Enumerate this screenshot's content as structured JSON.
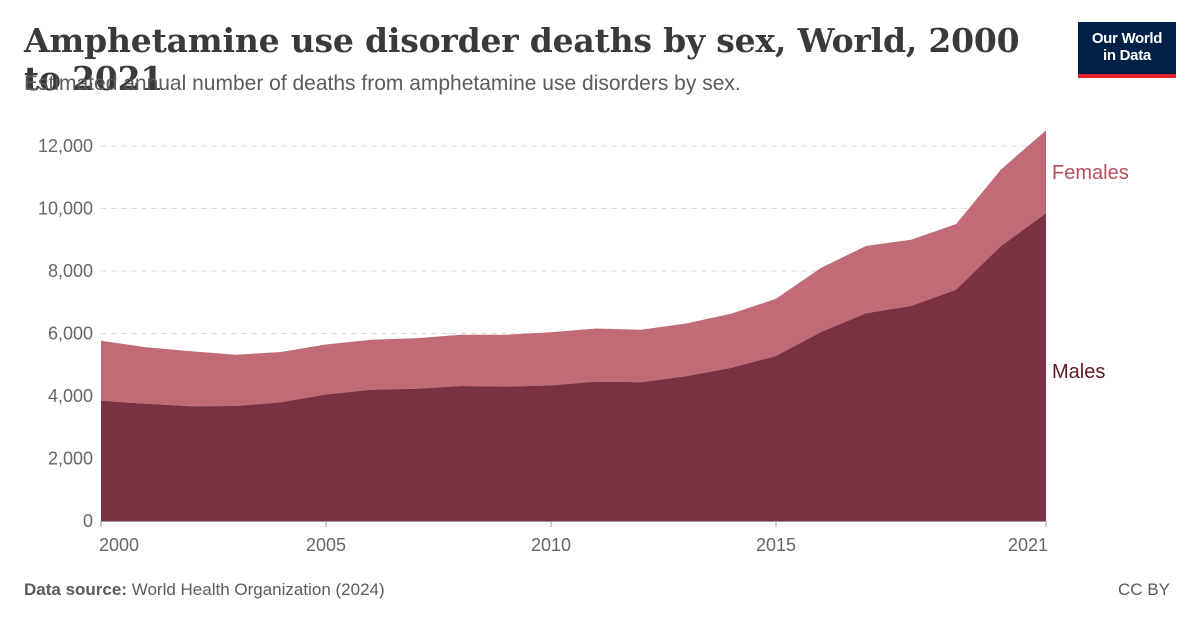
{
  "header": {
    "title": "Amphetamine use disorder deaths by sex, World, 2000 to 2021",
    "subtitle": "Estimated annual number of deaths from amphetamine use disorders by sex."
  },
  "logo": {
    "line1": "Our World",
    "line2": "in Data"
  },
  "footer": {
    "source_label": "Data source:",
    "source_text": "World Health Organization (2024)",
    "license": "CC BY"
  },
  "colors": {
    "males": "#7a3242",
    "females": "#c06b75",
    "females_label": "#b54f5f",
    "males_label": "#5e1a28",
    "grid": "#dddddd",
    "axis": "#666666"
  },
  "chart_data": {
    "type": "area",
    "stacked": true,
    "title": "Amphetamine use disorder deaths by sex, World, 2000 to 2021",
    "subtitle": "Estimated annual number of deaths from amphetamine use disorders by sex.",
    "x": [
      2000,
      2001,
      2002,
      2003,
      2004,
      2005,
      2006,
      2007,
      2008,
      2009,
      2010,
      2011,
      2012,
      2013,
      2014,
      2015,
      2016,
      2017,
      2018,
      2019,
      2020,
      2021
    ],
    "series": [
      {
        "name": "Males",
        "values": [
          3850,
          3750,
          3670,
          3680,
          3800,
          4050,
          4200,
          4230,
          4320,
          4300,
          4340,
          4460,
          4440,
          4630,
          4900,
          5280,
          6050,
          6650,
          6880,
          7400,
          8800,
          9850
        ]
      },
      {
        "name": "Females",
        "values": [
          1920,
          1810,
          1760,
          1640,
          1610,
          1600,
          1600,
          1620,
          1640,
          1660,
          1700,
          1700,
          1680,
          1690,
          1730,
          1830,
          2050,
          2150,
          2120,
          2100,
          2450,
          2650
        ]
      }
    ],
    "xlabel": "",
    "ylabel": "",
    "xlim": [
      2000,
      2021
    ],
    "ylim": [
      0,
      12000
    ],
    "yticks": [
      0,
      2000,
      4000,
      6000,
      8000,
      10000,
      12000
    ],
    "ytick_labels": [
      "0",
      "2,000",
      "4,000",
      "6,000",
      "8,000",
      "10,000",
      "12,000"
    ],
    "xticks": [
      2000,
      2005,
      2010,
      2015,
      2021
    ],
    "xtick_labels": [
      "2000",
      "2005",
      "2010",
      "2015",
      "2021"
    ],
    "grid": true,
    "legend": "right (inline labels)"
  }
}
